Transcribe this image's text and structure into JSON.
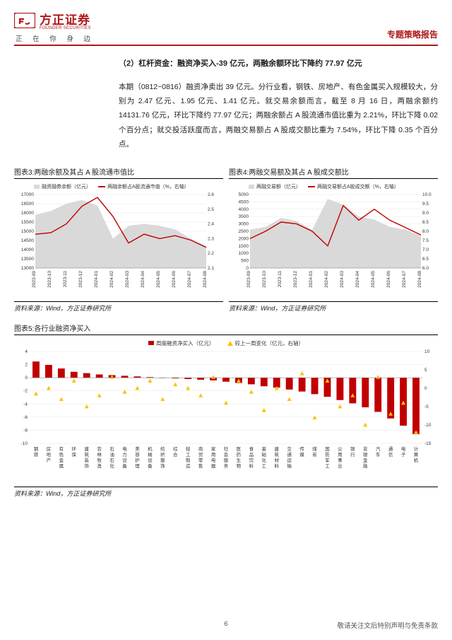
{
  "header": {
    "logo_cn": "方正证券",
    "logo_en": "FOUNDER SECURITIES",
    "tagline": "正 在 你 身 边",
    "report_type": "专题策略报告",
    "brand_color": "#b01818"
  },
  "section": {
    "title": "（2）杠杆资金：融资净买入-39 亿元，两融余额环比下降约 77.97 亿元",
    "body": "本期（0812~0816）融资净卖出 39 亿元。分行业看，钢铁、房地产、有色金属买入规模较大，分别为 2.47 亿元、1.95 亿元、1.41 亿元。就交易余额而言，截至 8 月 16 日，两融余额约 14131.76 亿元，环比下降约 77.97 亿元；两融余额占 A 股流通市值比重为 2.21%，环比下降 0.02 个百分点；就交投活跃度而言，两融交易额占 A 股成交额比重为 7.54%，环比下降 0.35 个百分点。"
  },
  "chart3": {
    "title": "图表3:两融余额及其占 A 股流通市值比",
    "legend": [
      "融资融券余额（亿元）",
      "两融余额占A股流通市值（%，右轴）"
    ],
    "type": "area+line",
    "x_labels": [
      "2023-09",
      "2023-10",
      "2023-11",
      "2023-12",
      "2024-01",
      "2024-02",
      "2024-03",
      "2024-04",
      "2024-05",
      "2024-06",
      "2024-07",
      "2024-08"
    ],
    "y_left": {
      "min": 13000,
      "max": 17000,
      "step": 500
    },
    "y_right": {
      "min": 2.1,
      "max": 2.6,
      "step": 0.1
    },
    "area_values": [
      15900,
      16100,
      16500,
      16700,
      16400,
      14600,
      15300,
      15400,
      15300,
      15100,
      14600,
      14200
    ],
    "line_values": [
      2.33,
      2.34,
      2.4,
      2.52,
      2.58,
      2.45,
      2.27,
      2.33,
      2.3,
      2.32,
      2.29,
      2.24
    ],
    "area_color": "#d9d9d9",
    "line_color": "#c00000",
    "grid_color": "#e6e6e6",
    "tick_fontsize": 6.5,
    "source": "资料来源：Wind，方正证券研究所"
  },
  "chart4": {
    "title": "图表4:两融交易额及其占 A 股成交额比",
    "legend": [
      "两融交易额（亿元）",
      "两融交易额占A股成交额（%，右轴）"
    ],
    "type": "area+line",
    "x_labels": [
      "2023-09",
      "2023-10",
      "2023-11",
      "2023-12",
      "2024-01",
      "2024-02",
      "2024-03",
      "2024-04",
      "2024-05",
      "2024-06",
      "2024-07",
      "2024-08"
    ],
    "y_left": {
      "min": 0,
      "max": 5000,
      "step": 500
    },
    "y_right": {
      "min": 6.0,
      "max": 10.0,
      "step": 0.5
    },
    "area_values": [
      2600,
      2800,
      3400,
      3200,
      2600,
      4700,
      4300,
      3500,
      3300,
      2800,
      2600,
      2200
    ],
    "line_values": [
      7.6,
      8.0,
      8.5,
      8.4,
      8.0,
      7.2,
      9.4,
      8.6,
      9.2,
      8.6,
      8.2,
      7.8
    ],
    "area_color": "#d9d9d9",
    "line_color": "#c00000",
    "grid_color": "#e6e6e6",
    "tick_fontsize": 6.5,
    "source": "资料来源：Wind，方正证券研究所"
  },
  "chart5": {
    "title": "图表5:各行业融资净买入",
    "legend": [
      "周度融资净买入（亿元）",
      "较上一周变化（亿元，右轴）"
    ],
    "type": "bar+marker",
    "y_left": {
      "min": -10,
      "max": 4,
      "step": 2
    },
    "y_right": {
      "min": -15,
      "max": 10,
      "step": 5
    },
    "categories": [
      "钢铁",
      "房地产",
      "有色金属",
      "环保",
      "建筑装饰",
      "农林牧渔",
      "石油石化",
      "电力设备",
      "美容护理",
      "机械设备",
      "纺织服饰",
      "综合",
      "轻工制造",
      "商贸零售",
      "家用电器",
      "社会服务",
      "医药生物",
      "食品饮料",
      "基础化工",
      "建筑材料",
      "交通运输",
      "传媒",
      "煤炭",
      "国防军工",
      "公用事业",
      "银行",
      "非银金融",
      "汽车",
      "通信",
      "电子",
      "计算机"
    ],
    "bar_values": [
      2.47,
      1.95,
      1.41,
      0.9,
      0.7,
      0.5,
      0.4,
      0.3,
      0.2,
      0.1,
      0.0,
      -0.1,
      -0.2,
      -0.3,
      -0.4,
      -0.6,
      -0.8,
      -1.0,
      -1.3,
      -1.5,
      -1.8,
      -2.1,
      -2.5,
      -2.9,
      -3.4,
      -3.9,
      -4.5,
      -5.2,
      -6.2,
      -7.3,
      -8.6
    ],
    "marker_values": [
      -1.5,
      0,
      -3,
      2,
      -5,
      -2,
      3,
      -1,
      0,
      2,
      -3,
      1,
      0,
      -2,
      3,
      -4,
      2,
      -1,
      -6,
      0,
      -3,
      4,
      -8,
      2,
      -5,
      -2,
      -10,
      3,
      -7,
      -4,
      -12
    ],
    "bar_color": "#c00000",
    "marker_color": "#ffc000",
    "grid_color": "#e6e6e6",
    "tick_fontsize": 6.5,
    "source": "资料来源：Wind，方正证券研究所"
  },
  "footer": {
    "page": "6",
    "disclaimer": "敬请关注文后特别声明与免责条款"
  }
}
